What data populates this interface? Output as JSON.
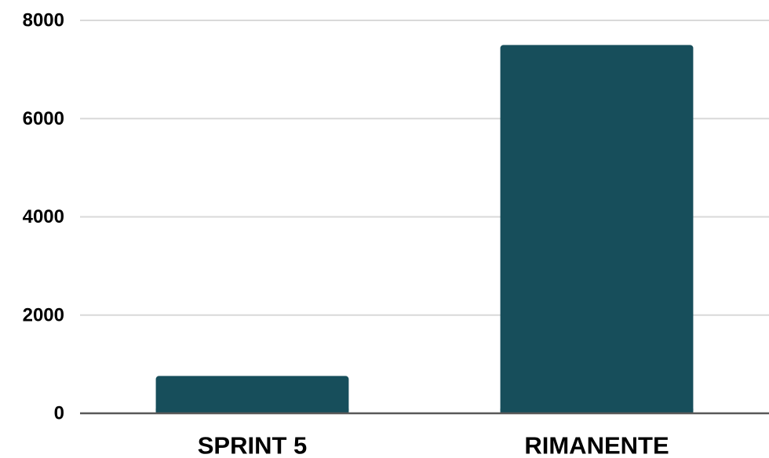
{
  "chart_data": {
    "type": "bar",
    "categories": [
      "SPRINT 5",
      "RIMANENTE"
    ],
    "values": [
      760,
      7500
    ],
    "ylim": [
      0,
      8000
    ],
    "yticks": [
      0,
      2000,
      4000,
      6000,
      8000
    ],
    "ytick_labels": [
      "0",
      "2000",
      "4000",
      "6000",
      "8000"
    ],
    "grid": true,
    "bar_color": "#174e5b",
    "grid_color": "#d9d9d9",
    "axis_color": "#595959"
  }
}
